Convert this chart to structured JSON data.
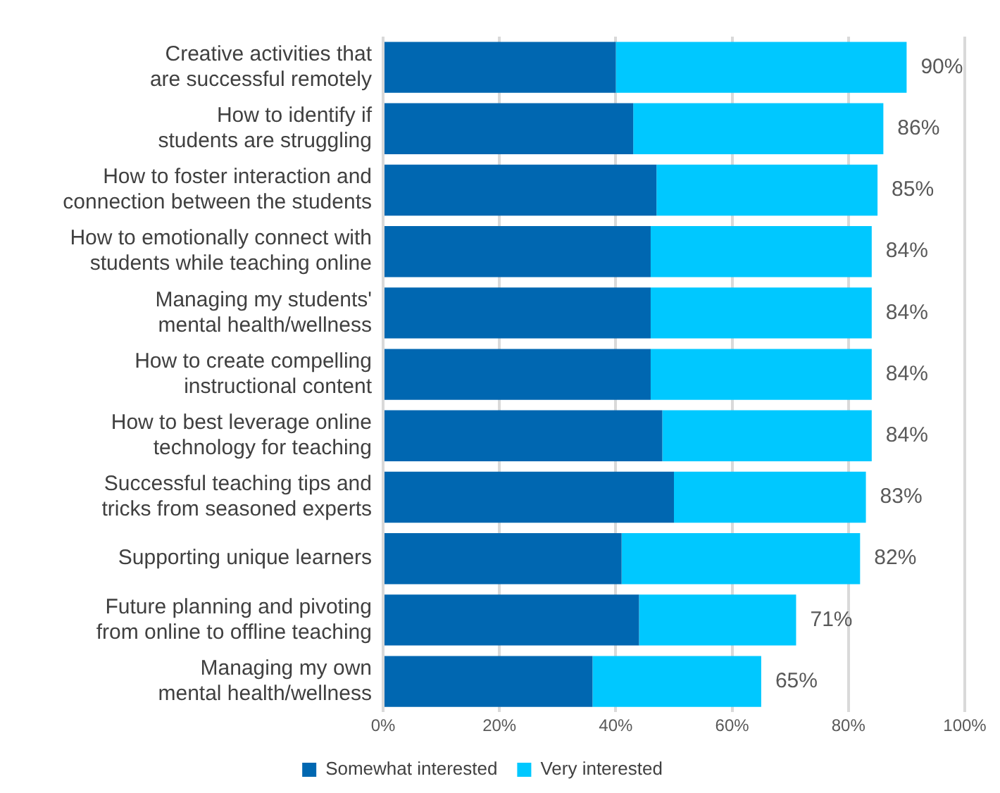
{
  "chart_data": {
    "type": "bar",
    "orientation": "horizontal",
    "stacked": true,
    "categories": [
      "Creative activities that\nare successful remotely",
      "How to identify if\nstudents are struggling",
      "How to foster interaction and\nconnection between the students",
      "How to emotionally connect with\nstudents while teaching online",
      "Managing my students'\nmental health/wellness",
      "How to create compelling\ninstructional content",
      "How to best leverage online\ntechnology for teaching",
      "Successful teaching tips and\ntricks from seasoned experts",
      "Supporting unique learners",
      "Future planning and pivoting\nfrom online to offline teaching",
      "Managing my own\nmental health/wellness"
    ],
    "series": [
      {
        "name": "Somewhat interested",
        "color": "#0067b1",
        "values": [
          40,
          43,
          47,
          46,
          46,
          46,
          48,
          50,
          41,
          44,
          36
        ]
      },
      {
        "name": "Very interested",
        "color": "#00c8ff",
        "values": [
          50,
          43,
          38,
          38,
          38,
          38,
          36,
          33,
          41,
          27,
          29
        ]
      }
    ],
    "totals": [
      "90%",
      "86%",
      "85%",
      "84%",
      "84%",
      "84%",
      "84%",
      "83%",
      "82%",
      "71%",
      "65%"
    ],
    "xlim": [
      0,
      100
    ],
    "xticks": [
      {
        "value": 0,
        "label": "0%"
      },
      {
        "value": 20,
        "label": "20%"
      },
      {
        "value": 40,
        "label": "40%"
      },
      {
        "value": 60,
        "label": "60%"
      },
      {
        "value": 80,
        "label": "80%"
      },
      {
        "value": 100,
        "label": "100%"
      }
    ],
    "grid": "x",
    "legend": "bottom"
  }
}
